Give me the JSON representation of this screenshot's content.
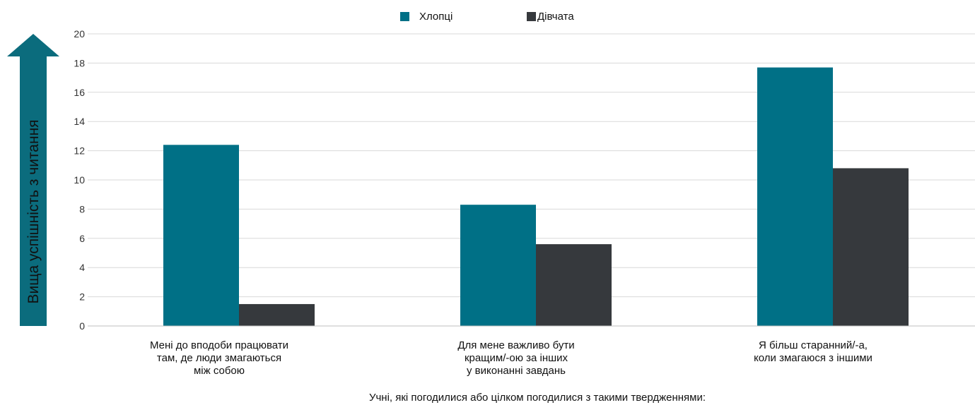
{
  "chart_data": {
    "type": "bar",
    "ylabel": "Вища успішність з читання",
    "xlabel": "Учні, які погодилися або цілком погодилися з такими твердженнями:",
    "ylim": [
      0,
      20
    ],
    "yticks": [
      "0",
      "2",
      "4",
      "6",
      "8",
      "10",
      "12",
      "14",
      "16",
      "18",
      "20"
    ],
    "grid": true,
    "legend_position": "top-center",
    "categories": [
      [
        "Мені до вподоби працювати",
        "там, де люди змагаються",
        "між собою"
      ],
      [
        "Для мене важливо бути",
        "кращим/-ою за інших",
        "у виконанні завдань"
      ],
      [
        "Я більш старанний/-а,",
        "коли змагаюся з іншими"
      ]
    ],
    "series": [
      {
        "name": "Хлопці",
        "color": "#007086",
        "values": [
          12.4,
          8.3,
          17.7
        ]
      },
      {
        "name": "Дівчата",
        "color": "#36393d",
        "values": [
          1.5,
          5.6,
          10.8
        ]
      }
    ]
  }
}
